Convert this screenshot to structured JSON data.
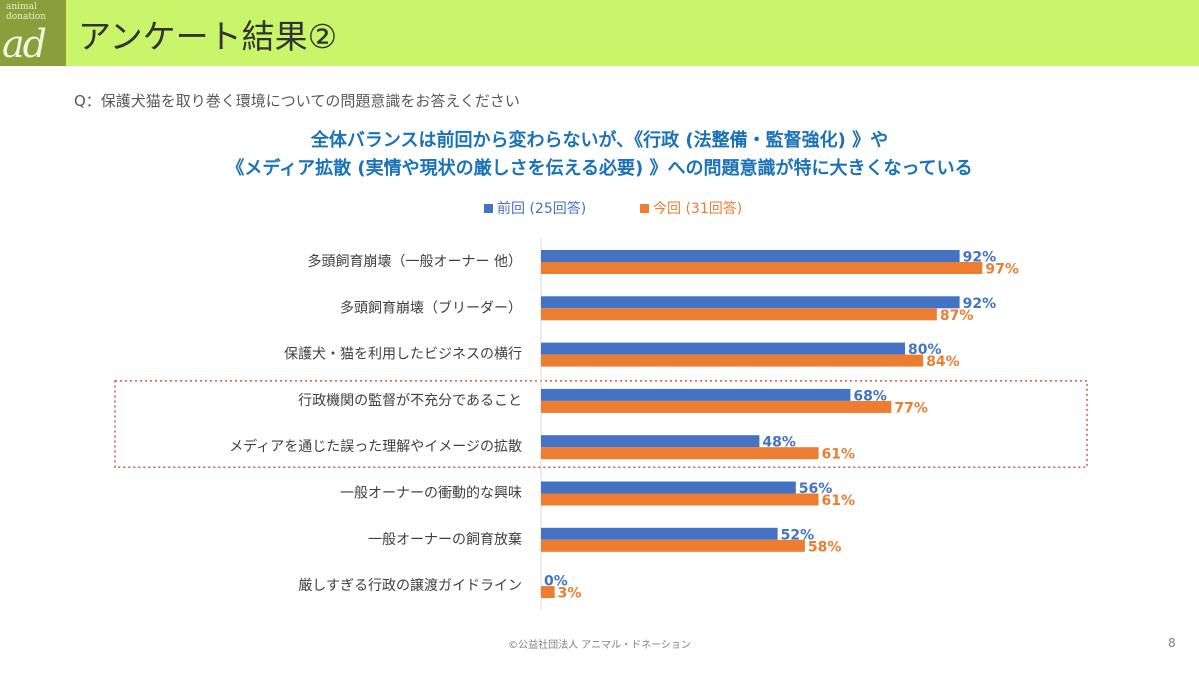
{
  "logo": {
    "line1": "animal",
    "line2": "donation",
    "mark": "ad"
  },
  "title": "アンケート結果②",
  "question": "Q：保護犬猫を取り巻く環境についての問題意識をお答えください",
  "headline": {
    "line1": "全体バランスは前回から変わらないが、《行政 (法整備・監督強化) 》や",
    "line2": "《メディア拡散 (実情や現状の厳しさを伝える必要) 》への問題意識が特に大きくなっている"
  },
  "footer": "©公益社団法人 アニマル・ドネーション",
  "page_number": "8",
  "colors": {
    "previous": "#4472c4",
    "current": "#ed7d31",
    "highlight_border": "#d9534f",
    "header_bg": "#c9f56a"
  },
  "chart_data": {
    "type": "bar",
    "orientation": "horizontal",
    "xlim": [
      0,
      100
    ],
    "categories": [
      "多頭飼育崩壊（一般オーナー 他）",
      "多頭飼育崩壊（ブリーダー）",
      "保護犬・猫を利用したビジネスの横行",
      "行政機関の監督が不充分であること",
      "メディアを通じた誤った理解やイメージの拡散",
      "一般オーナーの衝動的な興味",
      "一般オーナーの飼育放棄",
      "厳しすぎる行政の譲渡ガイドライン"
    ],
    "series": [
      {
        "name": "前回 (25回答)",
        "color": "#4472c4",
        "values": [
          92,
          92,
          80,
          68,
          48,
          56,
          52,
          0
        ],
        "labels": [
          "92%",
          "92%",
          "80%",
          "68%",
          "48%",
          "56%",
          "52%",
          "0%"
        ]
      },
      {
        "name": "今回 (31回答)",
        "color": "#ed7d31",
        "values": [
          97,
          87,
          84,
          77,
          61,
          61,
          58,
          3
        ],
        "labels": [
          "97%",
          "87%",
          "84%",
          "77%",
          "61%",
          "61%",
          "58%",
          "3%"
        ]
      }
    ],
    "highlighted_categories": [
      3,
      4
    ]
  }
}
